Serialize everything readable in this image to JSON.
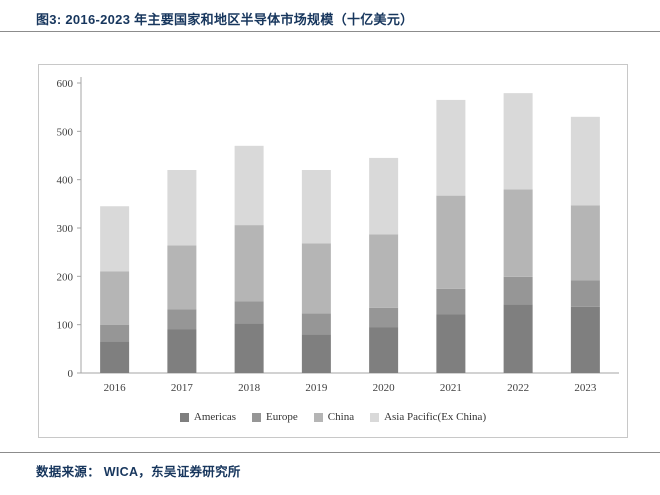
{
  "figure": {
    "title": "图3:  2016-2023 年主要国家和地区半导体市场规模（十亿美元）",
    "source": "数据来源：  WICA，东吴证券研究所",
    "accent_color": "#17365d",
    "axis_color": "#a6a6a6",
    "tick_text_color": "#404040"
  },
  "chart_data": {
    "type": "bar",
    "stacked": true,
    "title": "2016-2023 年主要国家和地区半导体市场规模（十亿美元）",
    "xlabel": "",
    "ylabel": "",
    "categories": [
      "2016",
      "2017",
      "2018",
      "2019",
      "2020",
      "2021",
      "2022",
      "2023"
    ],
    "series": [
      {
        "name": "Americas",
        "color": "#7f7f7f",
        "values": [
          65,
          90,
          103,
          80,
          95,
          121,
          142,
          137
        ]
      },
      {
        "name": "Europe",
        "color": "#969696",
        "values": [
          35,
          42,
          45,
          43,
          40,
          53,
          57,
          55
        ]
      },
      {
        "name": "China",
        "color": "#b5b5b5",
        "values": [
          110,
          132,
          158,
          145,
          152,
          193,
          181,
          155
        ]
      },
      {
        "name": "Asia Pacific(Ex China)",
        "color": "#d9d9d9",
        "values": [
          135,
          156,
          164,
          152,
          158,
          198,
          199,
          183
        ]
      }
    ],
    "ylim": [
      0,
      600
    ],
    "ytick_step": 100,
    "grid": false,
    "legend_position": "bottom"
  }
}
